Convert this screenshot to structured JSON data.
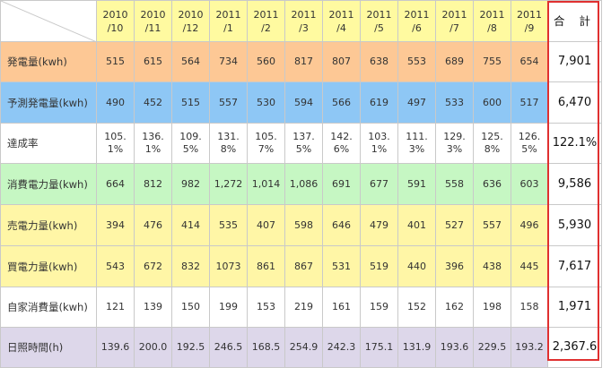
{
  "header": {
    "months": [
      "2010\n/10",
      "2010\n/11",
      "2010\n/12",
      "2011\n/1",
      "2011\n/2",
      "2011\n/3",
      "2011\n/4",
      "2011\n/5",
      "2011\n/6",
      "2011\n/7",
      "2011\n/8",
      "2011\n/9"
    ],
    "total_label": "合 計"
  },
  "rows": [
    {
      "label": "発電量(kwh)",
      "color": "#fdc895",
      "values": [
        "515",
        "615",
        "564",
        "734",
        "560",
        "817",
        "807",
        "638",
        "553",
        "689",
        "755",
        "654"
      ],
      "total": "7,901"
    },
    {
      "label": "予測発電量(kwh)",
      "color": "#8ec7f5",
      "values": [
        "490",
        "452",
        "515",
        "557",
        "530",
        "594",
        "566",
        "619",
        "497",
        "533",
        "600",
        "517"
      ],
      "total": "6,470"
    },
    {
      "label": "達成率",
      "color": "#ffffff",
      "values": [
        "105.\n1%",
        "136.\n1%",
        "109.\n5%",
        "131.\n8%",
        "105.\n7%",
        "137.\n5%",
        "142.\n6%",
        "103.\n1%",
        "111.\n3%",
        "129.\n3%",
        "125.\n8%",
        "126.\n5%"
      ],
      "total": "122.1%"
    },
    {
      "label": "消費電力量(kwh)",
      "color": "#c6f7c3",
      "values": [
        "664",
        "812",
        "982",
        "1,272",
        "1,014",
        "1,086",
        "691",
        "677",
        "591",
        "558",
        "636",
        "603"
      ],
      "total": "9,586"
    },
    {
      "label": "売電力量(kwh)",
      "color": "#fff6a6",
      "values": [
        "394",
        "476",
        "414",
        "535",
        "407",
        "598",
        "646",
        "479",
        "401",
        "527",
        "557",
        "496"
      ],
      "total": "5,930"
    },
    {
      "label": "買電力量(kwh)",
      "color": "#fff6a6",
      "values": [
        "543",
        "672",
        "832",
        "1073",
        "861",
        "867",
        "531",
        "519",
        "440",
        "396",
        "438",
        "445"
      ],
      "total": "7,617"
    },
    {
      "label": "自家消費量(kwh)",
      "color": "#ffffff",
      "values": [
        "121",
        "139",
        "150",
        "199",
        "153",
        "219",
        "161",
        "159",
        "152",
        "162",
        "198",
        "158"
      ],
      "total": "1,971"
    },
    {
      "label": "日照時間(h)",
      "color": "#ddd7ea",
      "values": [
        "139.6",
        "200.0",
        "192.5",
        "246.5",
        "168.5",
        "254.9",
        "242.3",
        "175.1",
        "131.9",
        "193.6",
        "229.5",
        "193.2"
      ],
      "total": "2,367.6"
    }
  ],
  "colors": {
    "header_bg": "#fffaa0",
    "total_border": "#e03030",
    "grid_line": "#c9c9c9"
  }
}
